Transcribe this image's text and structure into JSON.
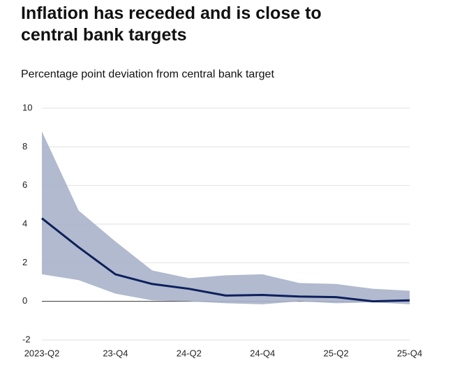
{
  "chart_data": {
    "type": "line",
    "title": "Inflation has receded and is close to central bank targets",
    "subtitle": "Percentage point deviation from central bank target",
    "categories": [
      "2023-Q2",
      null,
      "23-Q4",
      null,
      "24-Q2",
      null,
      "24-Q4",
      null,
      "25-Q2",
      null,
      "25-Q4"
    ],
    "values": [
      4.3,
      2.8,
      1.4,
      0.9,
      0.65,
      0.3,
      0.33,
      0.25,
      0.22,
      0.0,
      0.05
    ],
    "color": "#0d1f5c",
    "band": {
      "upper": [
        8.8,
        4.7,
        3.1,
        1.6,
        1.2,
        1.35,
        1.4,
        0.95,
        0.9,
        0.65,
        0.55
      ],
      "lower": [
        1.4,
        1.1,
        0.4,
        0.05,
        0.0,
        -0.1,
        -0.15,
        0.0,
        -0.1,
        -0.05,
        -0.15
      ],
      "color": "#a9b3c9"
    },
    "ylim": [
      -2,
      10
    ],
    "yticks": [
      -2,
      0,
      2,
      4,
      6,
      8,
      10
    ],
    "grid": true
  }
}
